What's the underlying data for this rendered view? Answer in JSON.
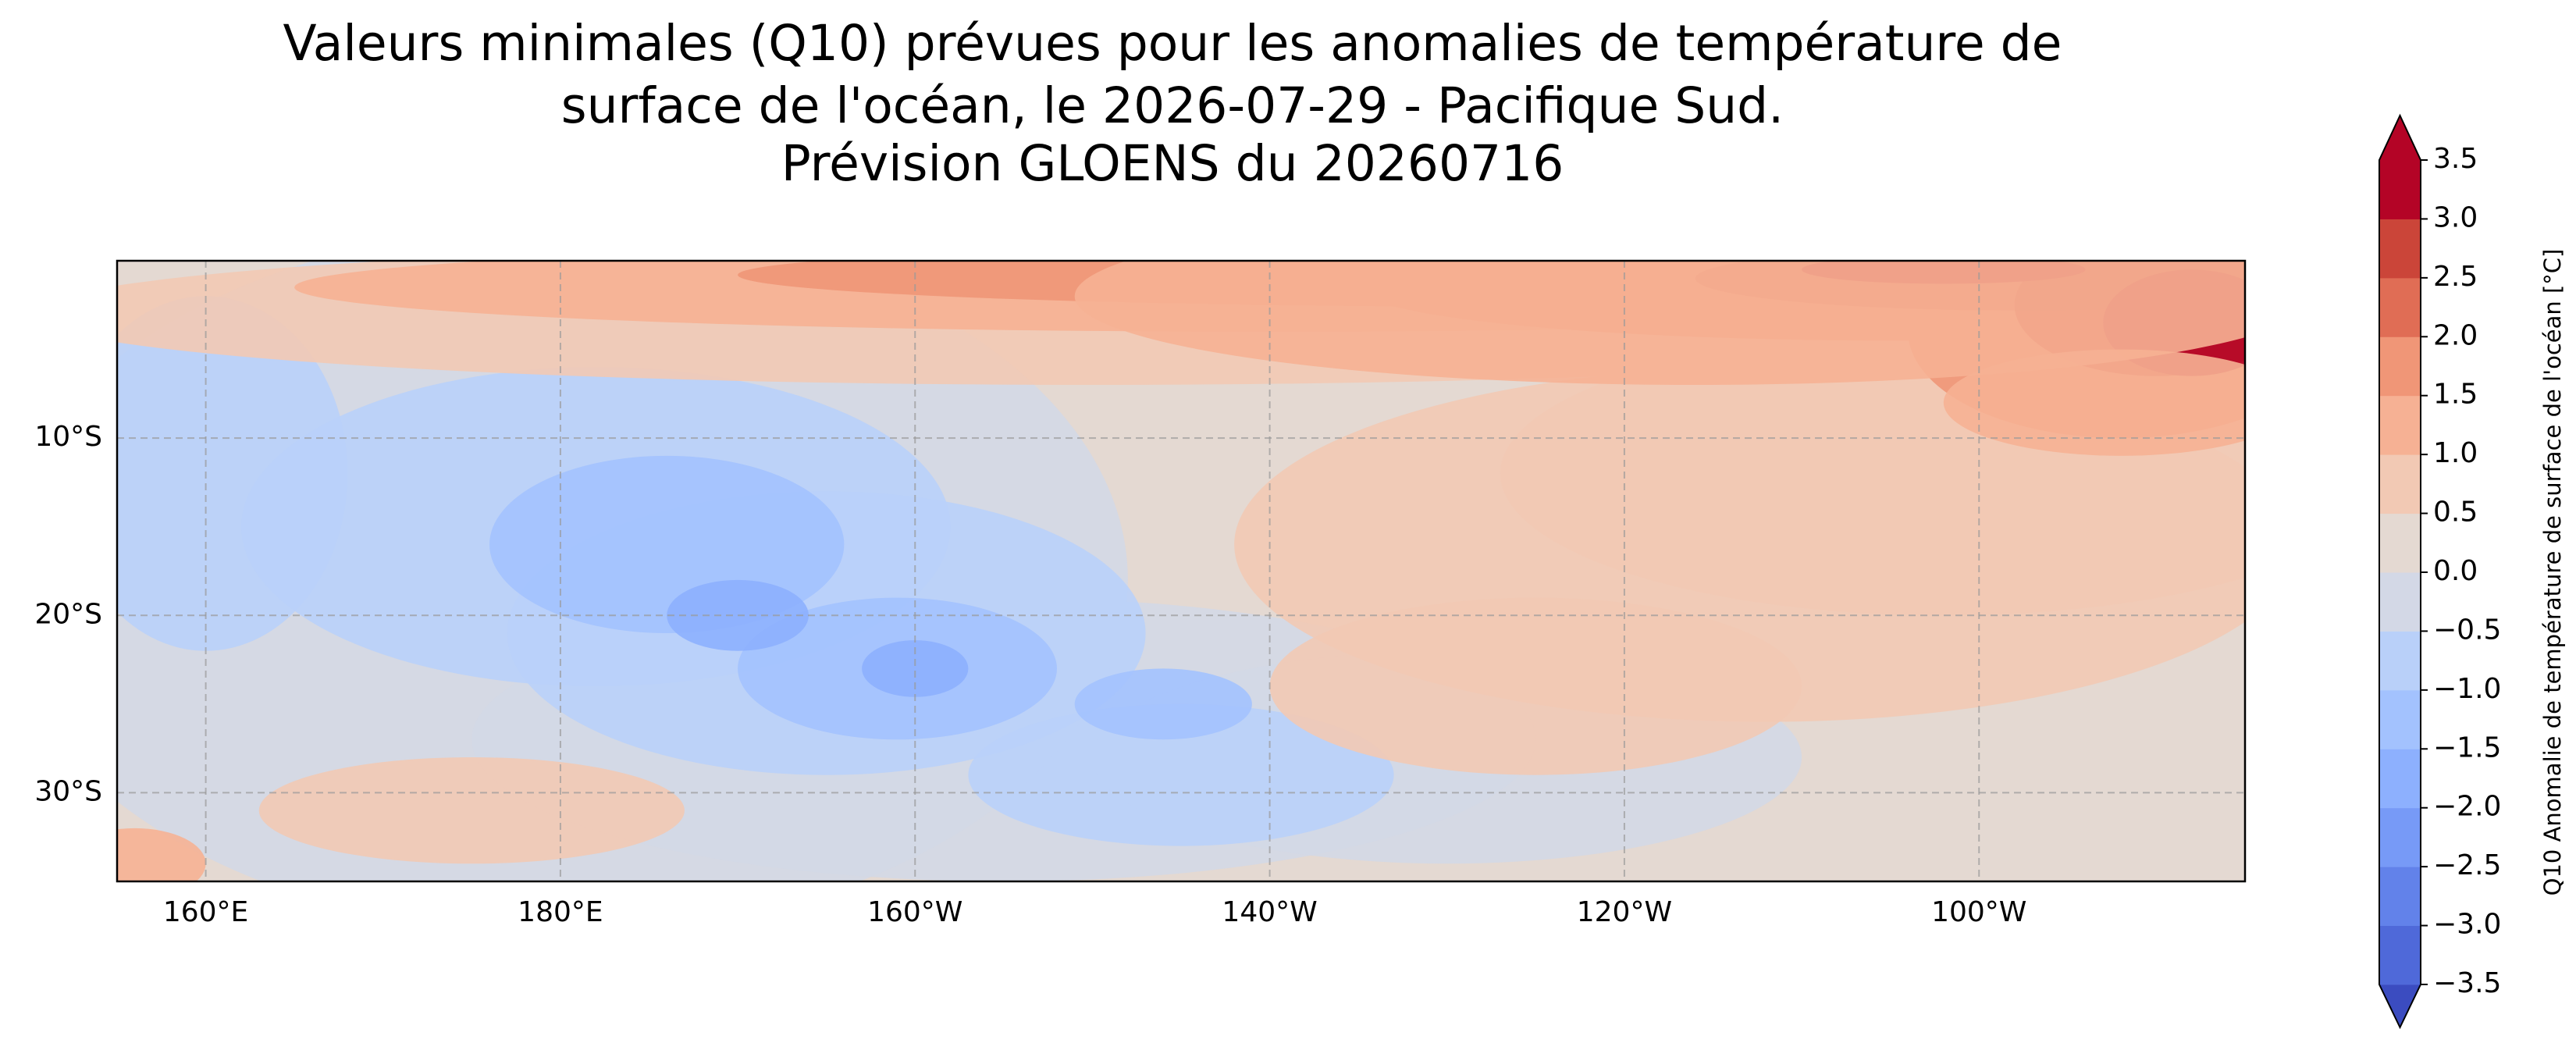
{
  "chart_data": {
    "type": "contour_map",
    "title": [
      "Valeurs minimales (Q10) prévues pour les anomalies de température de",
      "surface de l'océan, le 2026-07-29 - Pacifique Sud.",
      "Prévision GLOENS du 20260716"
    ],
    "xlim": [
      155,
      275
    ],
    "xticks": [
      {
        "value": 160,
        "label": "160°E"
      },
      {
        "value": 180,
        "label": "180°E"
      },
      {
        "value": 200,
        "label": "160°W"
      },
      {
        "value": 220,
        "label": "140°W"
      },
      {
        "value": 240,
        "label": "120°W"
      },
      {
        "value": 260,
        "label": "100°W"
      }
    ],
    "ylim": [
      -35,
      0
    ],
    "yticks": [
      {
        "value": -10,
        "label": "10°S"
      },
      {
        "value": -20,
        "label": "20°S"
      },
      {
        "value": -30,
        "label": "30°S"
      }
    ],
    "grid": true,
    "colorbar": {
      "label": "Q10 Anomalie de température de surface de l'océan [°C]",
      "clim": [
        -3.5,
        3.5
      ],
      "ticks": [
        {
          "value": -3.5,
          "label": "−3.5"
        },
        {
          "value": -3,
          "label": "−3.0"
        },
        {
          "value": -2.5,
          "label": "−2.5"
        },
        {
          "value": -2,
          "label": "−2.0"
        },
        {
          "value": -1.5,
          "label": "−1.5"
        },
        {
          "value": -1,
          "label": "−1.0"
        },
        {
          "value": -0.5,
          "label": "−0.5"
        },
        {
          "value": 0,
          "label": "0.0"
        },
        0.5,
        {
          "value": 1,
          "label": "1.0"
        },
        1.5,
        {
          "value": 2,
          "label": "2.0"
        },
        2.5,
        {
          "value": 3,
          "label": "3.0"
        },
        3.5
      ],
      "colors": [
        "#4f69d9",
        "#6282ea",
        "#779af7",
        "#8db0fe",
        "#a3c2fe",
        "#b9d0f9",
        "#d3d8e6",
        "#e4d9d2",
        "#f2c9b4",
        "#f6b194",
        "#f09677",
        "#e06d55",
        "#cb4539",
        "#b40426"
      ],
      "extend_colors": [
        "#3b4cc0",
        "#b40426"
      ]
    }
  }
}
